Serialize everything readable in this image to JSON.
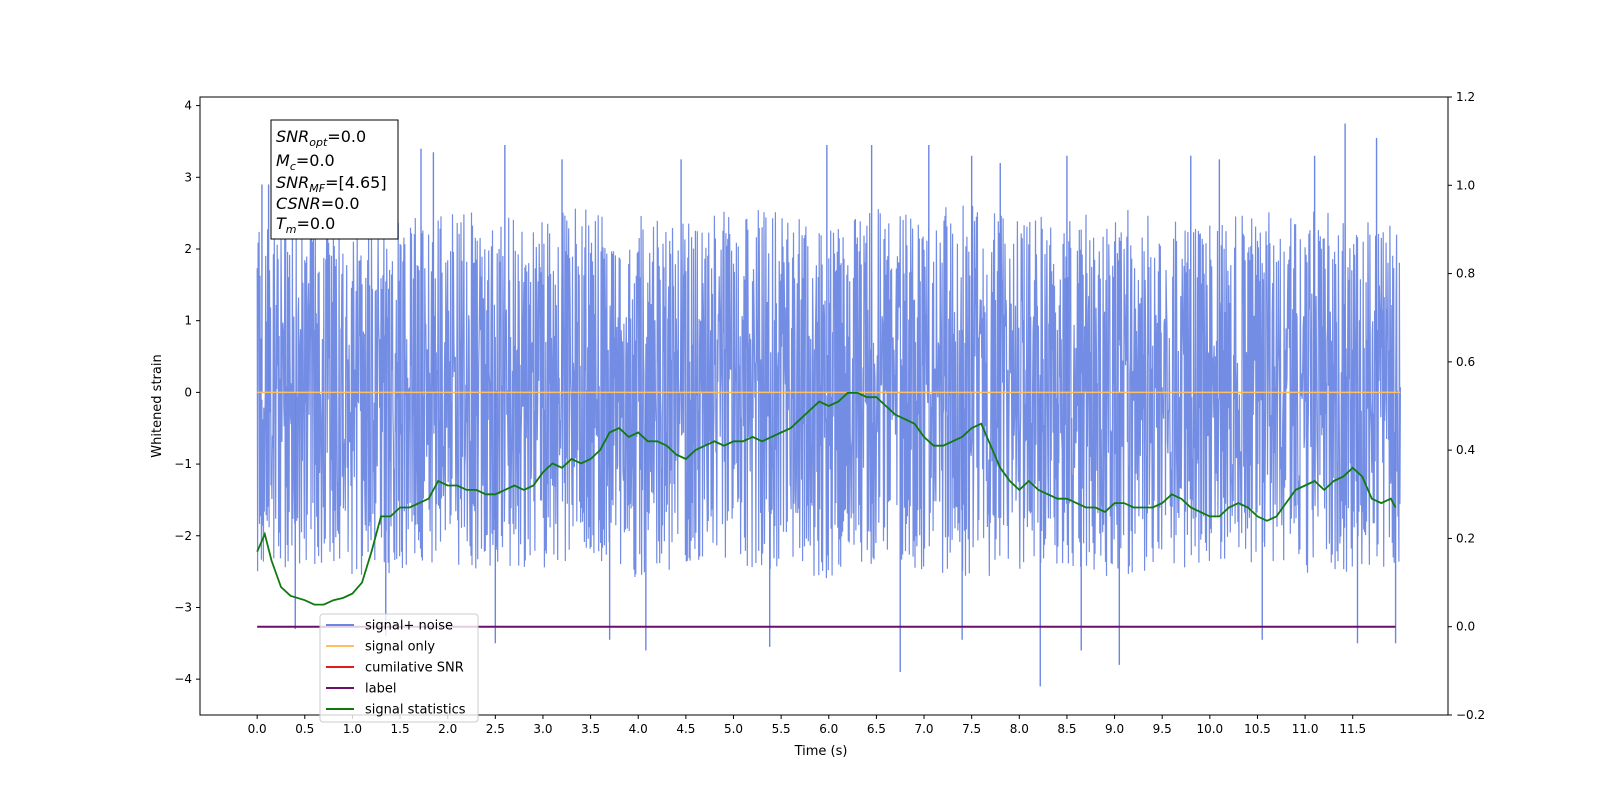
{
  "chart_data": {
    "type": "line",
    "xlabel": "Time (s)",
    "ylabel": "Whitened strain",
    "xlim": [
      -0.6,
      12.5
    ],
    "ylim": [
      -4.5,
      4.12
    ],
    "y2lim": [
      -0.2,
      1.2
    ],
    "x_ticks": [
      "0.0",
      "0.5",
      "1.0",
      "1.5",
      "2.0",
      "2.5",
      "3.0",
      "3.5",
      "4.0",
      "4.5",
      "5.0",
      "5.5",
      "6.0",
      "6.5",
      "7.0",
      "7.5",
      "8.0",
      "8.5",
      "9.0",
      "9.5",
      "10.0",
      "10.5",
      "11.0",
      "11.5"
    ],
    "y_ticks": [
      "4",
      "3",
      "2",
      "1",
      "0",
      "−1",
      "−2",
      "−3",
      "−4"
    ],
    "y2_ticks": [
      "1.2",
      "1.0",
      "0.8",
      "0.6",
      "0.4",
      "0.2",
      "0.0",
      "−0.2"
    ],
    "info_box": {
      "snr_opt": "SNR",
      "snr_opt_sub": "opt",
      "snr_opt_val": "=0.0",
      "mc": "M",
      "mc_sub": "c",
      "mc_val": "=0.0",
      "snr_mf": "SNR",
      "snr_mf_sub": "MF",
      "snr_mf_val": "=[4.65]",
      "csnr": "CSNR",
      "csnr_val": "=0.0",
      "tm": "T",
      "tm_sub": "m",
      "tm_val": "=0.0"
    },
    "legend": [
      {
        "label": "signal+ noise",
        "color": "#6b86e3"
      },
      {
        "label": "signal only",
        "color": "#ffbf60"
      },
      {
        "label": "cumilative SNR",
        "color": "#e41a1c"
      },
      {
        "label": "label",
        "color": "#6a0f6a"
      },
      {
        "label": "signal statistics",
        "color": "#107a10"
      }
    ],
    "series": [
      {
        "name": "signal+ noise",
        "color": "#6b86e3",
        "axis": "left",
        "x_range": [
          0.0,
          12.0
        ],
        "envelope_upper": [
          2.4,
          2.5,
          2.3,
          2.4,
          2.6,
          2.5,
          2.4,
          2.7,
          2.5,
          2.4,
          2.6,
          2.5,
          2.4,
          2.6,
          2.5,
          2.7,
          2.5,
          2.4,
          2.6,
          2.5,
          2.4,
          2.5,
          2.6,
          2.5,
          2.4
        ],
        "envelope_lower": [
          -2.5,
          -2.4,
          -2.6,
          -2.5,
          -2.4,
          -2.6,
          -2.5,
          -2.4,
          -2.6,
          -2.5,
          -2.4,
          -2.5,
          -2.6,
          -2.4,
          -2.5,
          -2.6,
          -2.5,
          -2.4,
          -2.6,
          -2.5,
          -2.4,
          -2.5,
          -2.6,
          -2.5,
          -2.4
        ],
        "spikes_up": [
          [
            0.05,
            2.9
          ],
          [
            0.12,
            2.9
          ],
          [
            1.72,
            3.4
          ],
          [
            1.85,
            3.35
          ],
          [
            2.6,
            3.45
          ],
          [
            3.2,
            3.25
          ],
          [
            4.45,
            3.25
          ],
          [
            5.98,
            3.45
          ],
          [
            6.45,
            3.45
          ],
          [
            7.05,
            3.45
          ],
          [
            7.5,
            3.3
          ],
          [
            7.8,
            3.2
          ],
          [
            8.5,
            3.3
          ],
          [
            9.8,
            3.3
          ],
          [
            10.1,
            3.25
          ],
          [
            11.1,
            3.3
          ],
          [
            11.42,
            3.75
          ],
          [
            11.75,
            3.55
          ]
        ],
        "spikes_down": [
          [
            0.4,
            -3.3
          ],
          [
            1.35,
            -3.4
          ],
          [
            2.5,
            -3.5
          ],
          [
            3.7,
            -3.45
          ],
          [
            4.08,
            -3.6
          ],
          [
            5.38,
            -3.55
          ],
          [
            6.75,
            -3.9
          ],
          [
            7.4,
            -3.45
          ],
          [
            8.22,
            -4.1
          ],
          [
            8.65,
            -3.6
          ],
          [
            9.05,
            -3.8
          ],
          [
            10.55,
            -3.45
          ],
          [
            11.55,
            -3.5
          ],
          [
            11.95,
            -3.5
          ]
        ]
      },
      {
        "name": "signal only",
        "color": "#ffbf60",
        "axis": "left",
        "x": [
          0.0,
          12.0
        ],
        "y": [
          0.0,
          0.0
        ]
      },
      {
        "name": "label",
        "color": "#6a0f6a",
        "axis": "right",
        "x": [
          0.0,
          11.95
        ],
        "y": [
          0.0,
          0.0
        ]
      },
      {
        "name": "signal statistics",
        "color": "#107a10",
        "axis": "right",
        "x": [
          0.0,
          0.08,
          0.15,
          0.25,
          0.35,
          0.5,
          0.6,
          0.7,
          0.8,
          0.9,
          1.0,
          1.1,
          1.2,
          1.3,
          1.4,
          1.5,
          1.6,
          1.7,
          1.8,
          1.9,
          2.0,
          2.1,
          2.2,
          2.3,
          2.4,
          2.5,
          2.6,
          2.7,
          2.8,
          2.9,
          3.0,
          3.1,
          3.2,
          3.3,
          3.4,
          3.5,
          3.6,
          3.7,
          3.8,
          3.9,
          4.0,
          4.1,
          4.2,
          4.3,
          4.4,
          4.5,
          4.6,
          4.7,
          4.8,
          4.9,
          5.0,
          5.1,
          5.2,
          5.3,
          5.4,
          5.5,
          5.6,
          5.7,
          5.8,
          5.9,
          6.0,
          6.1,
          6.2,
          6.3,
          6.4,
          6.5,
          6.6,
          6.7,
          6.8,
          6.9,
          7.0,
          7.1,
          7.2,
          7.3,
          7.4,
          7.5,
          7.6,
          7.7,
          7.8,
          7.9,
          8.0,
          8.1,
          8.2,
          8.3,
          8.4,
          8.5,
          8.6,
          8.7,
          8.8,
          8.9,
          9.0,
          9.1,
          9.2,
          9.3,
          9.4,
          9.5,
          9.6,
          9.7,
          9.8,
          9.9,
          10.0,
          10.1,
          10.2,
          10.3,
          10.4,
          10.5,
          10.6,
          10.7,
          10.8,
          10.9,
          11.0,
          11.1,
          11.2,
          11.3,
          11.4,
          11.5,
          11.6,
          11.7,
          11.8,
          11.9,
          11.95
        ],
        "y": [
          0.17,
          0.21,
          0.15,
          0.09,
          0.07,
          0.06,
          0.05,
          0.05,
          0.06,
          0.065,
          0.075,
          0.1,
          0.17,
          0.25,
          0.25,
          0.27,
          0.27,
          0.28,
          0.29,
          0.33,
          0.32,
          0.32,
          0.31,
          0.31,
          0.3,
          0.3,
          0.31,
          0.32,
          0.31,
          0.32,
          0.35,
          0.37,
          0.36,
          0.38,
          0.37,
          0.38,
          0.4,
          0.44,
          0.45,
          0.43,
          0.44,
          0.42,
          0.42,
          0.41,
          0.39,
          0.38,
          0.4,
          0.41,
          0.42,
          0.41,
          0.42,
          0.42,
          0.43,
          0.42,
          0.43,
          0.44,
          0.45,
          0.47,
          0.49,
          0.51,
          0.5,
          0.51,
          0.53,
          0.53,
          0.52,
          0.52,
          0.5,
          0.48,
          0.47,
          0.46,
          0.43,
          0.41,
          0.41,
          0.42,
          0.43,
          0.45,
          0.46,
          0.41,
          0.36,
          0.33,
          0.31,
          0.33,
          0.31,
          0.3,
          0.29,
          0.29,
          0.28,
          0.27,
          0.27,
          0.26,
          0.28,
          0.28,
          0.27,
          0.27,
          0.27,
          0.28,
          0.3,
          0.29,
          0.27,
          0.26,
          0.25,
          0.25,
          0.27,
          0.28,
          0.27,
          0.25,
          0.24,
          0.25,
          0.28,
          0.31,
          0.32,
          0.33,
          0.31,
          0.33,
          0.34,
          0.36,
          0.34,
          0.29,
          0.28,
          0.29,
          0.27
        ]
      }
    ]
  }
}
